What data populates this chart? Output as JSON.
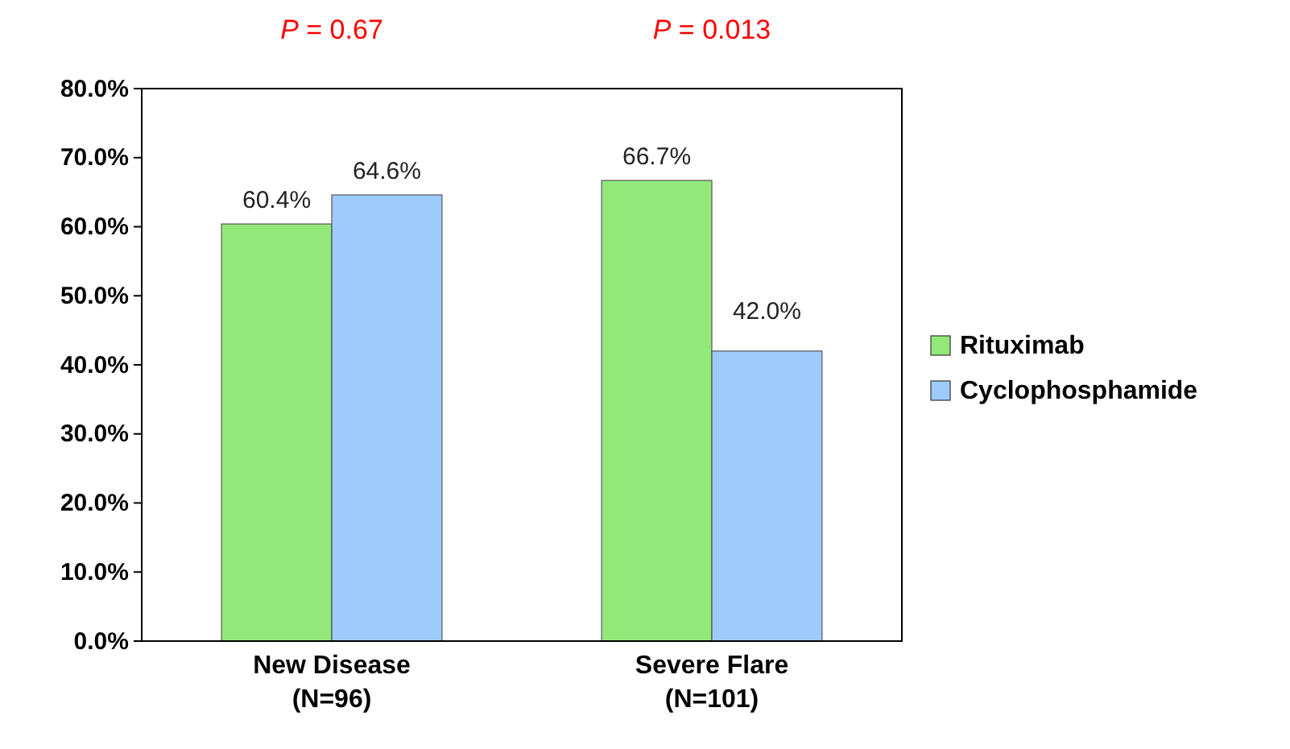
{
  "chart_data": {
    "type": "bar",
    "categories": [
      "New Disease (N=96)",
      "Severe Flare (N=101)"
    ],
    "series": [
      {
        "name": "Rituximab",
        "color": "#92e97a",
        "values": [
          60.4,
          66.7
        ],
        "value_labels": [
          "60.4%",
          "66.7%"
        ]
      },
      {
        "name": "Cyclophosphamide",
        "color": "#9dcbfb",
        "values": [
          64.6,
          42.0
        ],
        "value_labels": [
          "64.6%",
          "42.0%"
        ]
      }
    ],
    "ylim": [
      0,
      80
    ],
    "yticks": [
      {
        "value": 0,
        "label": "0.0%"
      },
      {
        "value": 10,
        "label": "10.0%"
      },
      {
        "value": 20,
        "label": "20.0%"
      },
      {
        "value": 30,
        "label": "30.0%"
      },
      {
        "value": 40,
        "label": "40.0%"
      },
      {
        "value": 50,
        "label": "50.0%"
      },
      {
        "value": 60,
        "label": "60.0%"
      },
      {
        "value": 70,
        "label": "70.0%"
      },
      {
        "value": 80,
        "label": "80.0%"
      }
    ],
    "annotations": [
      "P = 0.67",
      "P = 0.013"
    ],
    "legend": "right",
    "grid": false
  }
}
